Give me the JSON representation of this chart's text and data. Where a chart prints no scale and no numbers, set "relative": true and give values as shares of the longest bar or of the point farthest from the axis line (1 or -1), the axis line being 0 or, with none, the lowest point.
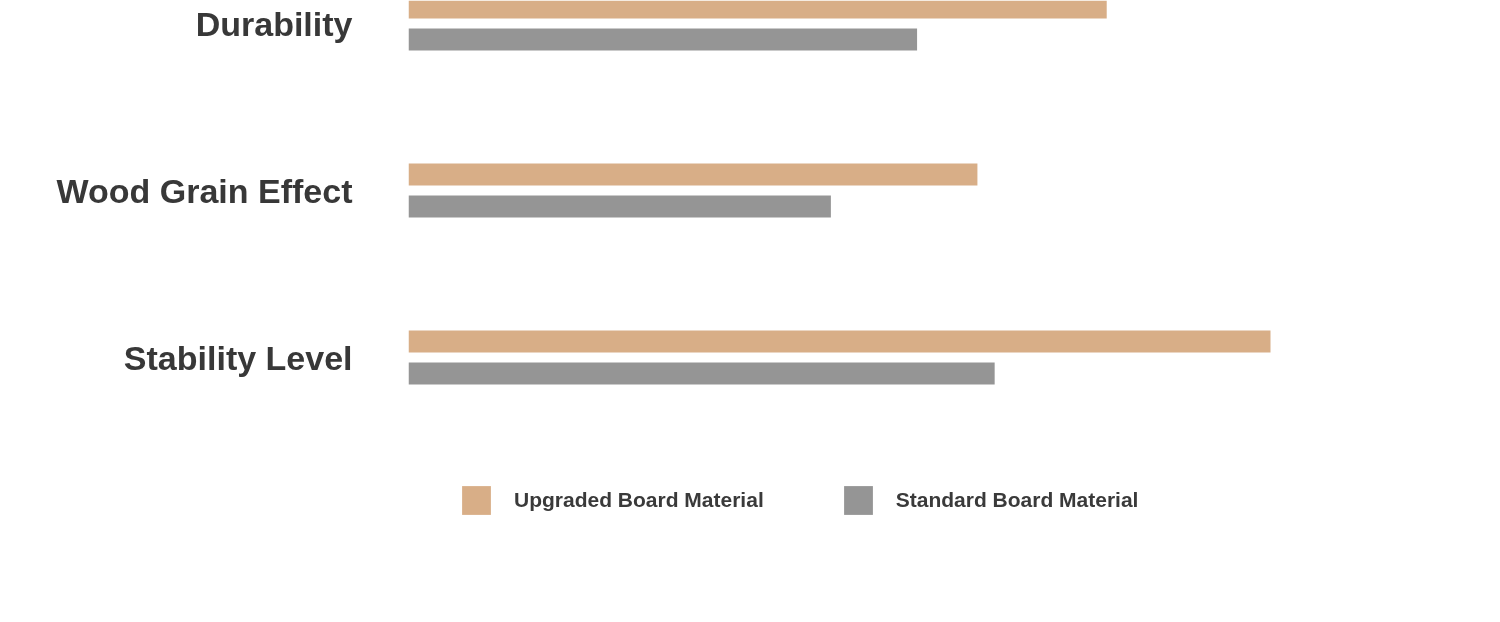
{
  "chart_data": {
    "type": "bar",
    "orientation": "horizontal",
    "relative": true,
    "categories": [
      "Durability",
      "Wood Grain Effect",
      "Stability Level"
    ],
    "series": [
      {
        "name": "Upgraded Board Material",
        "color": "#d8ae87",
        "values": [
          0.81,
          0.66,
          1
        ]
      },
      {
        "name": "Standard Board Material",
        "color": "#959595",
        "values": [
          0.59,
          0.49,
          0.68
        ]
      }
    ],
    "legend": "bottom"
  }
}
